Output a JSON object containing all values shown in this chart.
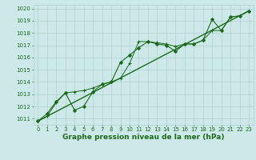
{
  "bg_color": "#cde8e8",
  "grid_color": "#b0d0d0",
  "line_color": "#1a6b1a",
  "marker_color": "#1a6b1a",
  "xlabel": "Graphe pression niveau de la mer (hPa)",
  "xlabel_color": "#1a6b1a",
  "xlabel_fontsize": 6.5,
  "tick_color": "#1a6b1a",
  "tick_fontsize": 5.0,
  "xlim": [
    -0.5,
    23.5
  ],
  "ylim": [
    1010.5,
    1020.3
  ],
  "yticks": [
    1011,
    1012,
    1013,
    1014,
    1015,
    1016,
    1017,
    1018,
    1019,
    1020
  ],
  "xticks": [
    0,
    1,
    2,
    3,
    4,
    5,
    6,
    7,
    8,
    9,
    10,
    11,
    12,
    13,
    14,
    15,
    16,
    17,
    18,
    19,
    20,
    21,
    22,
    23
  ],
  "series": [
    {
      "x": [
        0,
        1,
        2,
        3,
        4,
        5,
        6,
        7,
        8,
        9,
        10,
        11,
        12,
        13,
        14,
        15,
        16,
        17,
        18,
        19,
        20,
        21,
        22,
        23
      ],
      "y": [
        1010.8,
        1011.4,
        1012.4,
        1013.1,
        1011.7,
        1012.0,
        1013.2,
        1013.8,
        1014.0,
        1015.6,
        1016.2,
        1016.8,
        1017.3,
        1017.1,
        1017.0,
        1016.5,
        1017.1,
        1017.1,
        1017.4,
        1019.1,
        1018.2,
        1019.3,
        1019.4,
        1019.8
      ],
      "marker": "D",
      "markersize": 2.0,
      "linewidth": 0.8
    },
    {
      "x": [
        0,
        1,
        2,
        3,
        4,
        5,
        6,
        7,
        8,
        9,
        10,
        11,
        12,
        13,
        14,
        15,
        16,
        17,
        18,
        19,
        20,
        21,
        22,
        23
      ],
      "y": [
        1010.8,
        1011.2,
        1012.3,
        1013.1,
        1013.2,
        1013.3,
        1013.5,
        1013.8,
        1014.0,
        1014.3,
        1015.5,
        1017.3,
        1017.3,
        1017.2,
        1017.1,
        1016.9,
        1017.1,
        1017.1,
        1017.4,
        1018.2,
        1018.2,
        1019.3,
        1019.4,
        1019.8
      ],
      "marker": "+",
      "markersize": 3.0,
      "linewidth": 0.7
    },
    {
      "x": [
        0,
        23
      ],
      "y": [
        1010.8,
        1019.8
      ],
      "marker": null,
      "markersize": 0,
      "linewidth": 1.0
    }
  ]
}
